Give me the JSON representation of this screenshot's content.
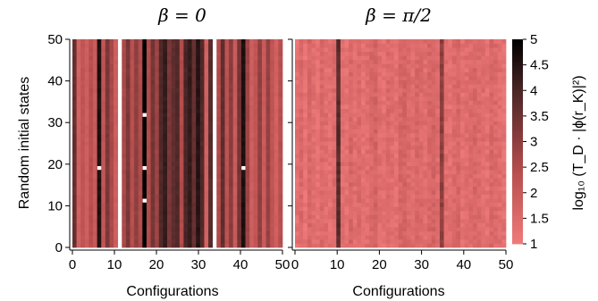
{
  "figure": {
    "ylabel": "Random initial states",
    "colorbar_label": "log₁₀ (T_D · |ϕ(r_K)|²)"
  },
  "chart_data": [
    {
      "type": "heatmap",
      "title": "β = 0",
      "xlabel": "Configurations",
      "ylabel": "Random initial states",
      "x_ticks": [
        0,
        10,
        20,
        30,
        40,
        50
      ],
      "y_ticks": [
        0,
        10,
        20,
        30,
        40,
        50
      ],
      "xlim": [
        0,
        50
      ],
      "ylim": [
        0,
        50
      ],
      "n_configurations": 51,
      "n_states": 51,
      "column_levels": [
        3.6,
        1.8,
        2.2,
        1.9,
        2.4,
        2.0,
        4.6,
        2.2,
        3.3,
        2.6,
        1.9,
        1.0,
        2.6,
        3.3,
        2.4,
        3.0,
        2.5,
        5.0,
        2.5,
        3.4,
        2.8,
        3.9,
        4.3,
        3.3,
        3.7,
        3.9,
        2.5,
        4.0,
        4.3,
        3.6,
        4.5,
        3.9,
        1.8,
        3.8,
        1.0,
        2.5,
        3.7,
        2.3,
        3.1,
        2.0,
        3.4,
        4.6,
        2.8,
        1.9,
        2.2,
        3.0,
        2.0,
        2.9,
        2.2,
        1.8,
        2.4
      ],
      "missing_columns": [
        11,
        34
      ],
      "missing_cells": [
        [
          6,
          19
        ],
        [
          17,
          19
        ],
        [
          17,
          32
        ],
        [
          17,
          11
        ],
        [
          41,
          19
        ]
      ],
      "clim": [
        1,
        5
      ]
    },
    {
      "type": "heatmap",
      "title": "β = π/2",
      "xlabel": "Configurations",
      "x_ticks": [
        0,
        10,
        20,
        30,
        40,
        50
      ],
      "xlim": [
        0,
        50
      ],
      "ylim": [
        0,
        50
      ],
      "n_configurations": 51,
      "n_states": 51,
      "column_levels": [
        1.3,
        1.5,
        1.2,
        1.6,
        1.4,
        1.3,
        1.5,
        1.4,
        1.3,
        1.5,
        3.8,
        1.4,
        1.3,
        1.6,
        1.4,
        1.5,
        1.3,
        1.4,
        1.6,
        1.7,
        1.4,
        1.3,
        1.5,
        1.4,
        1.3,
        1.6,
        1.7,
        1.5,
        1.4,
        1.6,
        1.5,
        1.4,
        1.6,
        1.7,
        1.5,
        3.0,
        1.4,
        1.3,
        1.5,
        1.6,
        1.3,
        1.4,
        1.5,
        1.6,
        1.5,
        1.4,
        1.3,
        1.6,
        1.5,
        1.4,
        1.3
      ],
      "clim": [
        1,
        5
      ]
    }
  ],
  "colorbar": {
    "ticks": [
      1,
      1.5,
      2,
      2.5,
      3,
      3.5,
      4,
      4.5,
      5
    ],
    "tick_labels": [
      "1",
      "1.5",
      "2",
      "2.5",
      "3",
      "3.5",
      "4",
      "4.5",
      "5"
    ],
    "clim": [
      1,
      5
    ],
    "colormap": {
      "low": "#f07a7a",
      "mid": "#b84e4e",
      "dark": "#4a2626",
      "high": "#000000"
    }
  }
}
